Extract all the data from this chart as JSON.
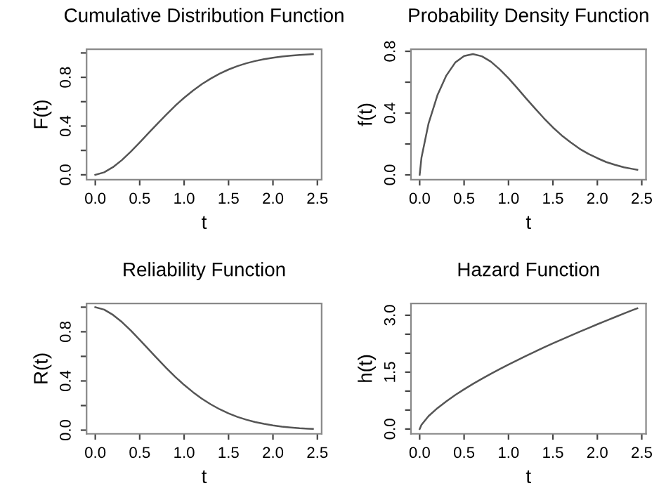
{
  "chart_data": [
    {
      "type": "line",
      "title": "Cumulative Distribution Function",
      "xlabel": "t",
      "ylabel": "F(t)",
      "x": [
        0,
        0.1,
        0.2,
        0.3,
        0.4,
        0.5,
        0.6,
        0.7,
        0.8,
        0.9,
        1.0,
        1.1,
        1.2,
        1.3,
        1.4,
        1.5,
        1.6,
        1.7,
        1.8,
        1.9,
        2.0,
        2.1,
        2.2,
        2.3,
        2.4,
        2.45
      ],
      "series": [
        {
          "color": "#555555",
          "values": [
            0,
            0.02,
            0.063,
            0.121,
            0.19,
            0.265,
            0.343,
            0.42,
            0.495,
            0.567,
            0.632,
            0.691,
            0.744,
            0.79,
            0.83,
            0.864,
            0.892,
            0.915,
            0.934,
            0.949,
            0.961,
            0.971,
            0.978,
            0.984,
            0.988,
            0.99
          ]
        }
      ],
      "xlim": [
        -0.098,
        2.548
      ],
      "ylim": [
        -0.04,
        1.03
      ],
      "xticks": [
        {
          "value": 0,
          "label": "0.0"
        },
        0.5,
        {
          "value": 1,
          "label": "1.0"
        },
        1.5,
        {
          "value": 2,
          "label": "2.0"
        },
        2.5
      ],
      "yticks": [
        {
          "value": 0,
          "label": "0.0"
        },
        {
          "value": 0.2,
          "label": null
        },
        0.4,
        {
          "value": 0.6,
          "label": null
        },
        0.8,
        {
          "value": 1,
          "label": null
        }
      ]
    },
    {
      "type": "line",
      "title": "Probability Density Function",
      "xlabel": "t",
      "ylabel": "f(t)",
      "x": [
        0,
        0.02,
        0.1,
        0.2,
        0.3,
        0.4,
        0.5,
        0.6,
        0.7,
        0.8,
        0.9,
        1.0,
        1.1,
        1.2,
        1.3,
        1.4,
        1.5,
        1.6,
        1.7,
        1.8,
        1.9,
        2.0,
        2.1,
        2.2,
        2.3,
        2.4,
        2.45
      ],
      "series": [
        {
          "color": "#555555",
          "values": [
            0,
            0.11,
            0.333,
            0.516,
            0.643,
            0.727,
            0.77,
            0.782,
            0.768,
            0.734,
            0.684,
            0.626,
            0.561,
            0.494,
            0.429,
            0.366,
            0.307,
            0.255,
            0.21,
            0.169,
            0.136,
            0.108,
            0.083,
            0.065,
            0.049,
            0.038,
            0.0325
          ]
        }
      ],
      "xlim": [
        -0.098,
        2.548
      ],
      "ylim": [
        -0.031,
        0.813
      ],
      "xticks": [
        {
          "value": 0,
          "label": "0.0"
        },
        0.5,
        {
          "value": 1,
          "label": "1.0"
        },
        1.5,
        {
          "value": 2,
          "label": "2.0"
        },
        2.5
      ],
      "yticks": [
        {
          "value": 0,
          "label": "0.0"
        },
        {
          "value": 0.2,
          "label": null
        },
        0.4,
        {
          "value": 0.6,
          "label": null
        },
        0.8
      ]
    },
    {
      "type": "line",
      "title": "Reliability Function",
      "xlabel": "t",
      "ylabel": "R(t)",
      "x": [
        0,
        0.1,
        0.2,
        0.3,
        0.4,
        0.5,
        0.6,
        0.7,
        0.8,
        0.9,
        1.0,
        1.1,
        1.2,
        1.3,
        1.4,
        1.5,
        1.6,
        1.7,
        1.8,
        1.9,
        2.0,
        2.1,
        2.2,
        2.3,
        2.4,
        2.45
      ],
      "series": [
        {
          "color": "#555555",
          "values": [
            1,
            0.98,
            0.937,
            0.879,
            0.81,
            0.735,
            0.657,
            0.58,
            0.505,
            0.433,
            0.368,
            0.309,
            0.256,
            0.21,
            0.17,
            0.136,
            0.108,
            0.085,
            0.066,
            0.051,
            0.039,
            0.029,
            0.022,
            0.016,
            0.012,
            0.01
          ]
        }
      ],
      "xlim": [
        -0.098,
        2.548
      ],
      "ylim": [
        -0.03,
        1.03
      ],
      "xticks": [
        {
          "value": 0,
          "label": "0.0"
        },
        0.5,
        {
          "value": 1,
          "label": "1.0"
        },
        1.5,
        {
          "value": 2,
          "label": "2.0"
        },
        2.5
      ],
      "yticks": [
        {
          "value": 0,
          "label": "0.0"
        },
        {
          "value": 0.2,
          "label": null
        },
        0.4,
        {
          "value": 0.6,
          "label": null
        },
        0.8,
        {
          "value": 1,
          "label": null
        }
      ]
    },
    {
      "type": "line",
      "title": "Hazard Function",
      "xlabel": "t",
      "ylabel": "h(t)",
      "x": [
        0,
        0.02,
        0.1,
        0.2,
        0.3,
        0.4,
        0.5,
        0.6,
        0.7,
        0.8,
        0.9,
        1.0,
        1.1,
        1.2,
        1.3,
        1.4,
        1.5,
        1.6,
        1.7,
        1.8,
        1.9,
        2.0,
        2.1,
        2.2,
        2.3,
        2.4,
        2.45
      ],
      "series": [
        {
          "color": "#555555",
          "values": [
            0,
            0.11,
            0.34,
            0.551,
            0.731,
            0.897,
            1.047,
            1.19,
            1.324,
            1.453,
            1.579,
            1.7,
            1.817,
            1.931,
            2.043,
            2.152,
            2.258,
            2.362,
            2.465,
            2.565,
            2.664,
            2.762,
            2.858,
            2.952,
            3.046,
            3.138,
            3.183
          ]
        }
      ],
      "xlim": [
        -0.098,
        2.548
      ],
      "ylim": [
        -0.127,
        3.31
      ],
      "xticks": [
        {
          "value": 0,
          "label": "0.0"
        },
        0.5,
        {
          "value": 1,
          "label": "1.0"
        },
        1.5,
        {
          "value": 2,
          "label": "2.0"
        },
        2.5
      ],
      "yticks": [
        {
          "value": 0,
          "label": "0.0"
        },
        {
          "value": 0.5,
          "label": null
        },
        {
          "value": 1,
          "label": null
        },
        1.5,
        {
          "value": 2,
          "label": null
        },
        {
          "value": 2.5,
          "label": null
        },
        {
          "value": 3,
          "label": "3.0"
        }
      ]
    }
  ]
}
